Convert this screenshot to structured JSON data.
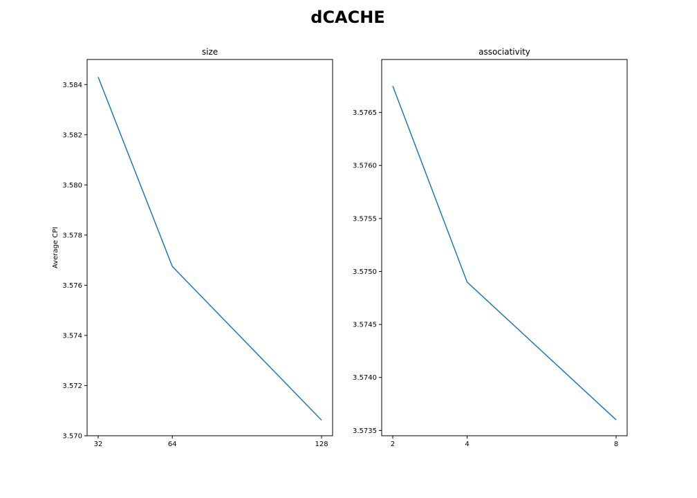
{
  "figure_title": "dCACHE",
  "chart_data": [
    {
      "type": "line",
      "title": "size",
      "xlabel": "",
      "ylabel": "Average CPI",
      "x": [
        32,
        64,
        128
      ],
      "x_ticks": [
        32,
        64,
        128
      ],
      "x_tick_labels": [
        "32",
        "64",
        "128"
      ],
      "series": [
        {
          "values": [
            3.5843,
            3.57675,
            3.57062
          ]
        }
      ],
      "ylim": [
        3.57,
        3.585
      ],
      "y_ticks": [
        3.57,
        3.572,
        3.574,
        3.576,
        3.578,
        3.58,
        3.582,
        3.584
      ],
      "y_tick_labels": [
        "3.570",
        "3.572",
        "3.574",
        "3.576",
        "3.578",
        "3.580",
        "3.582",
        "3.584"
      ],
      "grid": false,
      "color": "#1f77b4"
    },
    {
      "type": "line",
      "title": "associativity",
      "xlabel": "",
      "ylabel": "",
      "x": [
        2,
        4,
        8
      ],
      "x_ticks": [
        2,
        4,
        8
      ],
      "x_tick_labels": [
        "2",
        "4",
        "8"
      ],
      "series": [
        {
          "values": [
            3.57675,
            3.5749,
            3.5736
          ]
        }
      ],
      "ylim": [
        3.57345,
        3.577
      ],
      "y_ticks": [
        3.5735,
        3.574,
        3.5745,
        3.575,
        3.5755,
        3.576,
        3.5765
      ],
      "y_tick_labels": [
        "3.5735",
        "3.5740",
        "3.5745",
        "3.5750",
        "3.5755",
        "3.5760",
        "3.5765"
      ],
      "grid": false,
      "color": "#1f77b4"
    }
  ]
}
